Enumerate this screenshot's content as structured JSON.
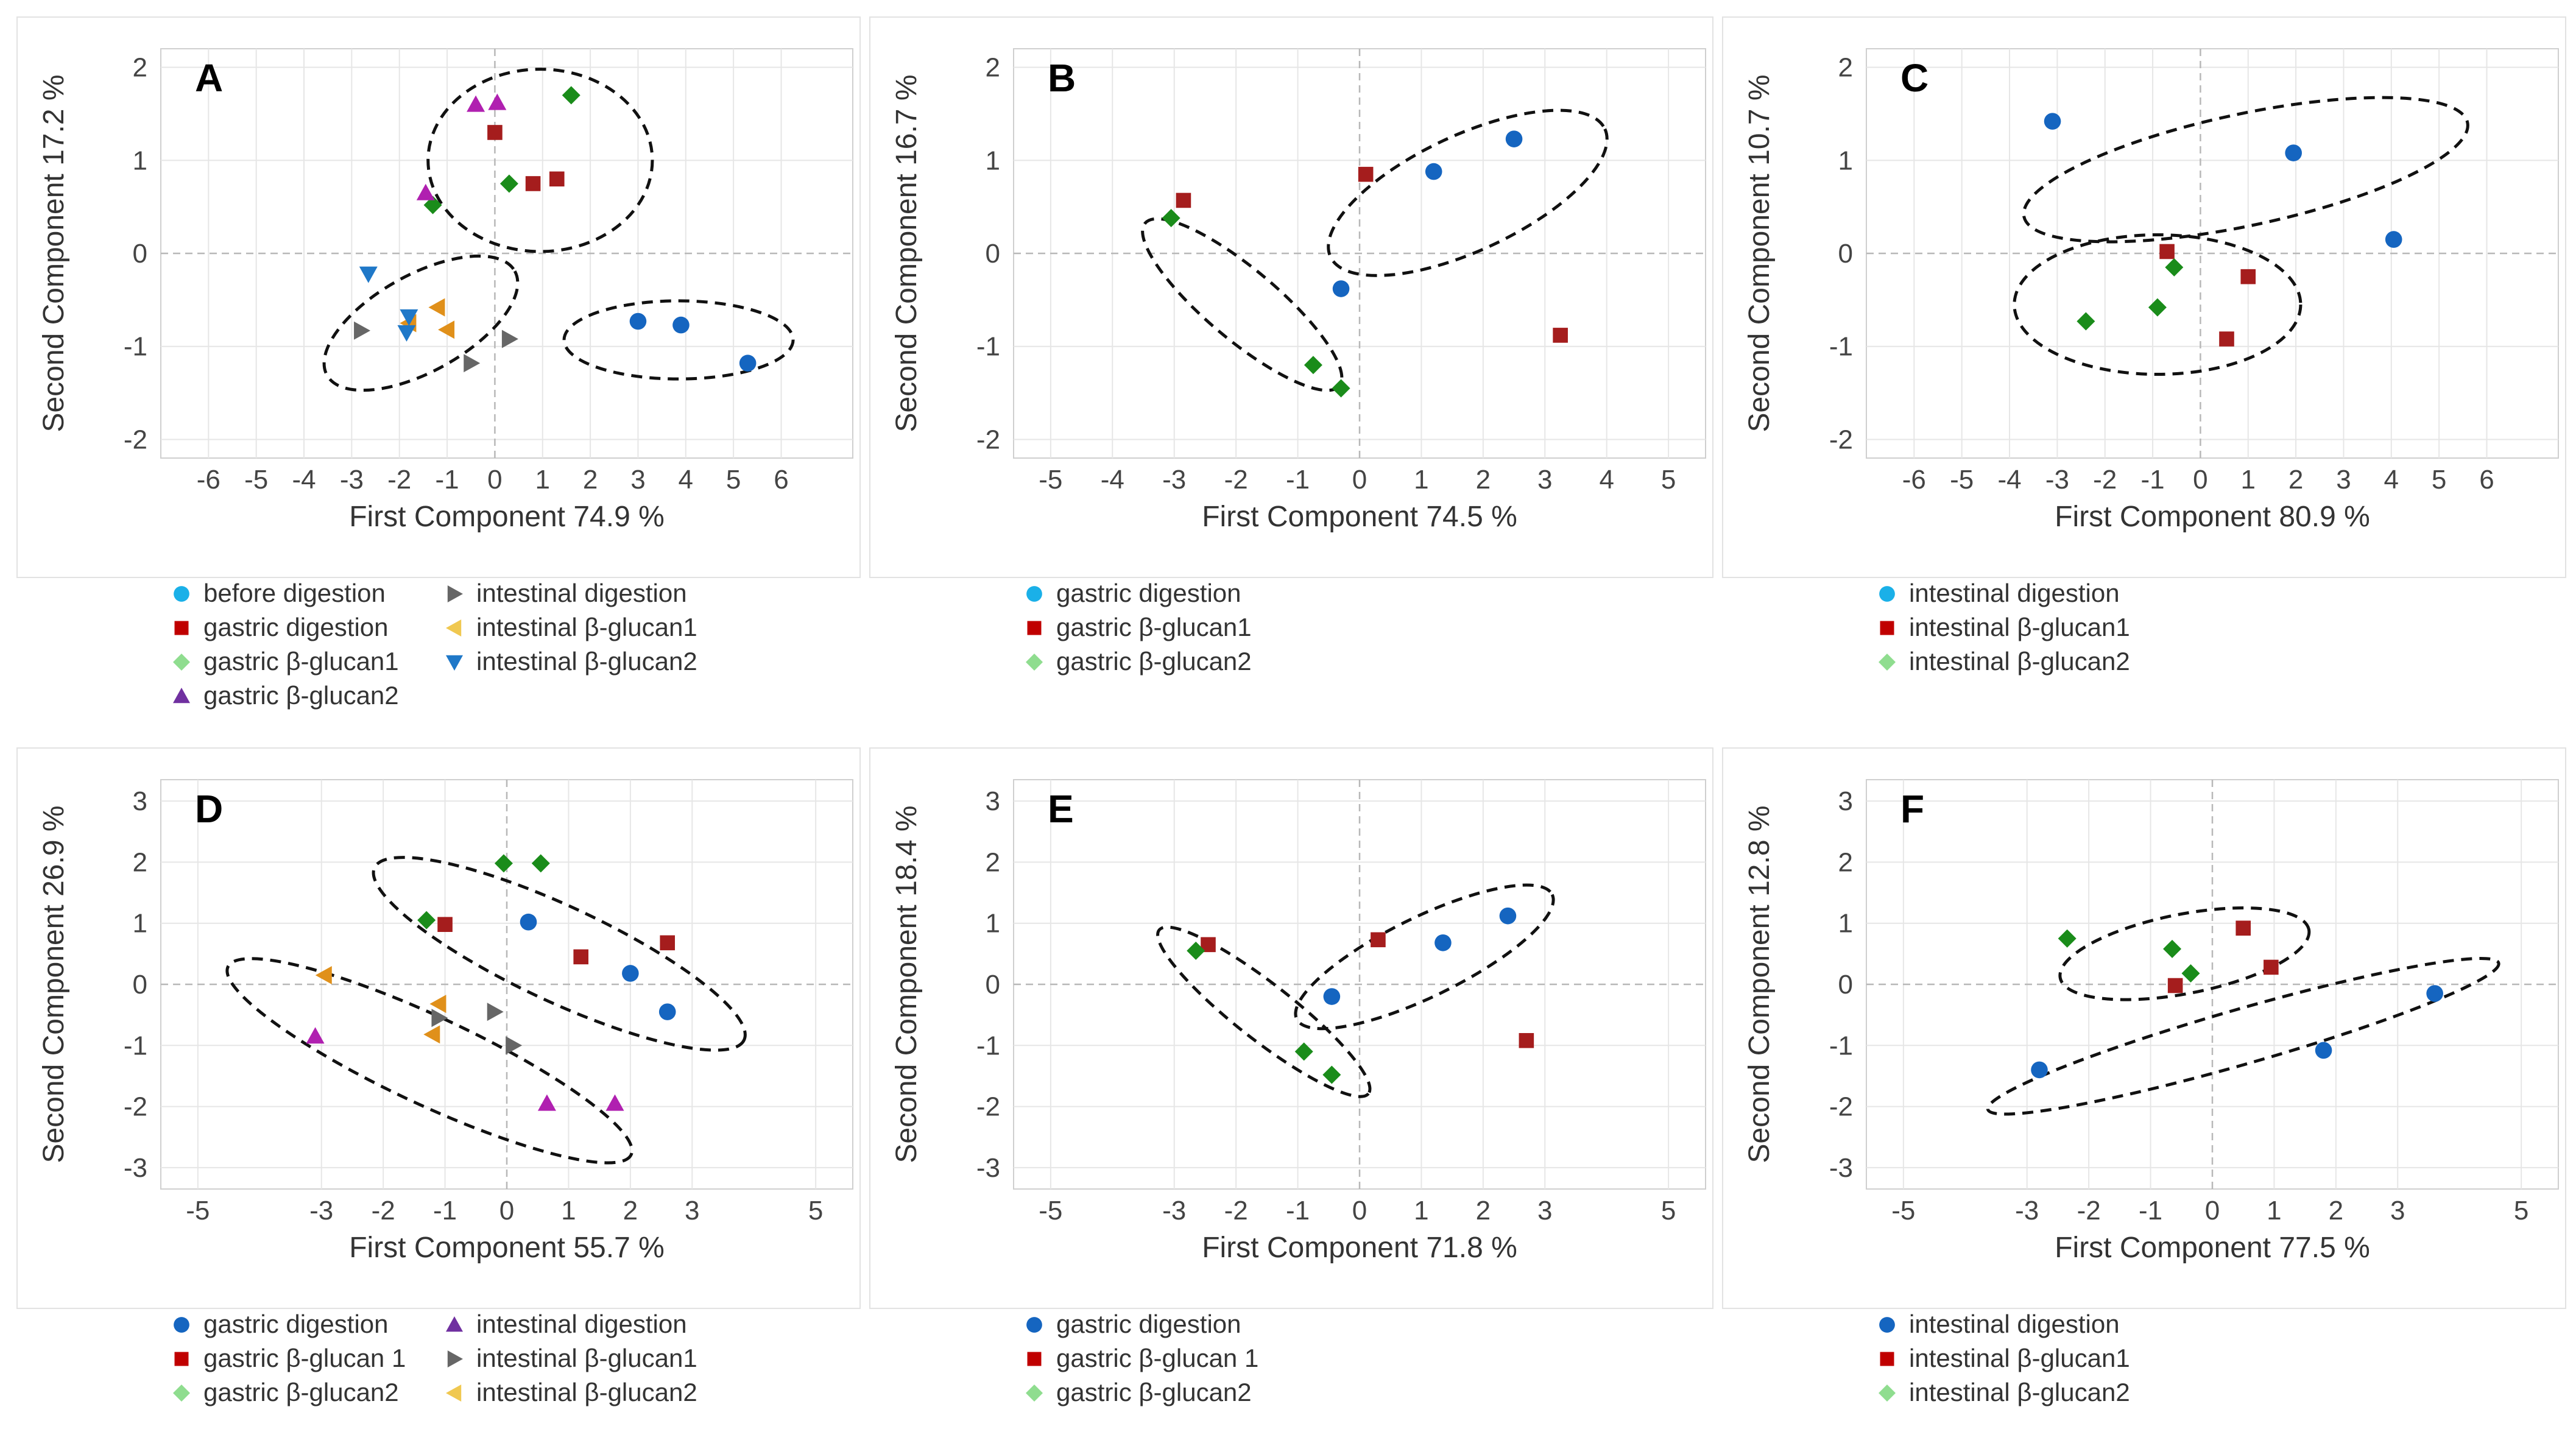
{
  "colors": {
    "blue": "#1565c0",
    "light_blue": "#1ab0e8",
    "red": "#c00000",
    "dark_red": "#a51d1d",
    "green": "#1a8c1a",
    "light_green": "#8fdd8f",
    "purple": "#b020b0",
    "purple_legend": "#7030a0",
    "gray": "#666666",
    "orange": "#e0901a",
    "yellow": "#f0c850",
    "steel_blue": "#1f78c8"
  },
  "chart_data": [
    {
      "panel": "A",
      "type": "scatter",
      "xlabel": "First Component 74.9 %",
      "ylabel": "Second Component 17.2 %",
      "xlim": [
        -7,
        7.5
      ],
      "ylim": [
        -2.2,
        2.2
      ],
      "xticks": [
        -6,
        -5,
        -4,
        -3,
        -2,
        -1,
        0,
        1,
        2,
        3,
        4,
        5,
        6
      ],
      "yticks": [
        2,
        1,
        0,
        -1,
        -2
      ],
      "legend": [
        {
          "label": "before digestion",
          "marker": "circle",
          "color": "light_blue"
        },
        {
          "label": "gastric digestion",
          "marker": "square",
          "color": "red"
        },
        {
          "label": "gastric β-glucan1",
          "marker": "diamond",
          "color": "light_green"
        },
        {
          "label": "gastric β-glucan2",
          "marker": "triangle-up",
          "color": "purple_legend"
        },
        {
          "label": "intestinal digestion",
          "marker": "triangle-right",
          "color": "gray"
        },
        {
          "label": "intestinal β-glucan1",
          "marker": "triangle-left",
          "color": "yellow"
        },
        {
          "label": "intestinal β-glucan2",
          "marker": "triangle-down",
          "color": "steel_blue"
        }
      ],
      "series": [
        {
          "name": "before digestion",
          "marker": "circle",
          "color": "blue",
          "points": [
            [
              3.0,
              -0.73
            ],
            [
              3.9,
              -0.77
            ],
            [
              5.3,
              -1.18
            ]
          ]
        },
        {
          "name": "gastric digestion",
          "marker": "square",
          "color": "dark_red",
          "points": [
            [
              0.0,
              1.3
            ],
            [
              0.8,
              0.75
            ],
            [
              1.3,
              0.8
            ]
          ]
        },
        {
          "name": "gastric β-glucan1",
          "marker": "diamond",
          "color": "green",
          "points": [
            [
              1.6,
              1.7
            ],
            [
              0.3,
              0.75
            ],
            [
              -1.3,
              0.52
            ]
          ]
        },
        {
          "name": "gastric β-glucan2",
          "marker": "triangle-up",
          "color": "purple",
          "points": [
            [
              -0.4,
              1.6
            ],
            [
              0.05,
              1.62
            ],
            [
              -1.45,
              0.65
            ]
          ]
        },
        {
          "name": "intestinal digestion",
          "marker": "triangle-right",
          "color": "gray",
          "points": [
            [
              -2.8,
              -0.83
            ],
            [
              -0.5,
              -1.18
            ],
            [
              0.3,
              -0.92
            ]
          ]
        },
        {
          "name": "intestinal β-glucan1",
          "marker": "triangle-left",
          "color": "orange",
          "points": [
            [
              -1.2,
              -0.58
            ],
            [
              -1.0,
              -0.82
            ],
            [
              -1.8,
              -0.75
            ]
          ]
        },
        {
          "name": "intestinal β-glucan2",
          "marker": "triangle-down",
          "color": "steel_blue",
          "points": [
            [
              -2.65,
              -0.22
            ],
            [
              -1.85,
              -0.85
            ],
            [
              -1.8,
              -0.68
            ]
          ]
        }
      ],
      "ellipses": [
        {
          "cx": 0.95,
          "cy": 1.0,
          "rx": 2.35,
          "ry": 0.98,
          "angle": 0
        },
        {
          "cx": -1.55,
          "cy": -0.75,
          "rx": 2.25,
          "ry": 0.52,
          "angle": -29
        },
        {
          "cx": 3.85,
          "cy": -0.93,
          "rx": 2.4,
          "ry": 0.42,
          "angle": 0
        }
      ]
    },
    {
      "panel": "B",
      "type": "scatter",
      "xlabel": "First Component 74.5 %",
      "ylabel": "Second Component 16.7 %",
      "xlim": [
        -5.6,
        5.6
      ],
      "ylim": [
        -2.2,
        2.2
      ],
      "xticks": [
        -5,
        -4,
        -3,
        -2,
        -1,
        0,
        1,
        2,
        3,
        4,
        5
      ],
      "yticks": [
        2,
        1,
        0,
        -1,
        -2
      ],
      "legend": [
        {
          "label": "gastric digestion",
          "marker": "circle",
          "color": "light_blue"
        },
        {
          "label": "gastric β-glucan1",
          "marker": "square",
          "color": "red"
        },
        {
          "label": "gastric β-glucan2",
          "marker": "diamond",
          "color": "light_green"
        }
      ],
      "series": [
        {
          "name": "gastric digestion",
          "marker": "circle",
          "color": "blue",
          "points": [
            [
              2.5,
              1.23
            ],
            [
              1.2,
              0.88
            ],
            [
              -0.3,
              -0.38
            ]
          ]
        },
        {
          "name": "gastric β-glucan1",
          "marker": "square",
          "color": "dark_red",
          "points": [
            [
              -2.85,
              0.57
            ],
            [
              0.1,
              0.85
            ],
            [
              3.25,
              -0.88
            ]
          ]
        },
        {
          "name": "gastric β-glucan2",
          "marker": "diamond",
          "color": "green",
          "points": [
            [
              -3.05,
              0.38
            ],
            [
              -0.75,
              -1.2
            ],
            [
              -0.3,
              -1.45
            ]
          ]
        }
      ],
      "ellipses": [
        {
          "cx": 1.75,
          "cy": 0.65,
          "rx": 2.45,
          "ry": 0.62,
          "angle": -25
        },
        {
          "cx": -1.9,
          "cy": -0.55,
          "rx": 2.05,
          "ry": 0.38,
          "angle": 40
        }
      ]
    },
    {
      "panel": "C",
      "type": "scatter",
      "xlabel": "First Component 80.9 %",
      "ylabel": "Second Component 10.7 %",
      "xlim": [
        -7,
        7.5
      ],
      "ylim": [
        -2.2,
        2.2
      ],
      "xticks": [
        -6,
        -5,
        -4,
        -3,
        -2,
        -1,
        0,
        1,
        2,
        3,
        4,
        5,
        6
      ],
      "yticks": [
        2,
        1,
        0,
        -1,
        -2
      ],
      "legend": [
        {
          "label": "intestinal digestion",
          "marker": "circle",
          "color": "light_blue"
        },
        {
          "label": "intestinal β-glucan1",
          "marker": "square",
          "color": "red"
        },
        {
          "label": "intestinal β-glucan2",
          "marker": "diamond",
          "color": "light_green"
        }
      ],
      "series": [
        {
          "name": "intestinal digestion",
          "marker": "circle",
          "color": "blue",
          "points": [
            [
              -3.1,
              1.42
            ],
            [
              1.95,
              1.08
            ],
            [
              4.05,
              0.15
            ]
          ]
        },
        {
          "name": "intestinal β-glucan1",
          "marker": "square",
          "color": "dark_red",
          "points": [
            [
              -0.7,
              0.02
            ],
            [
              1.0,
              -0.25
            ],
            [
              0.55,
              -0.92
            ]
          ]
        },
        {
          "name": "intestinal β-glucan2",
          "marker": "diamond",
          "color": "green",
          "points": [
            [
              -2.4,
              -0.73
            ],
            [
              -0.55,
              -0.15
            ],
            [
              -0.9,
              -0.58
            ]
          ]
        }
      ],
      "ellipses": [
        {
          "cx": 0.95,
          "cy": 0.9,
          "rx": 4.75,
          "ry": 0.6,
          "angle": -12
        },
        {
          "cx": -0.9,
          "cy": -0.55,
          "rx": 3.0,
          "ry": 0.75,
          "angle": 0
        }
      ]
    },
    {
      "panel": "D",
      "type": "scatter",
      "xlabel": "First Component 55.7 %",
      "ylabel": "Second Component 26.9 %",
      "xlim": [
        -5.6,
        5.6
      ],
      "ylim": [
        -3.35,
        3.35
      ],
      "xticks": [
        -5,
        -3,
        -2,
        -1,
        0,
        1,
        2,
        3,
        5
      ],
      "yticks": [
        3,
        2,
        1,
        0,
        -1,
        -2,
        -3
      ],
      "legend": [
        {
          "label": "gastric digestion",
          "marker": "circle",
          "color": "blue"
        },
        {
          "label": "gastric β-glucan 1",
          "marker": "square",
          "color": "red"
        },
        {
          "label": "gastric β-glucan2",
          "marker": "diamond",
          "color": "light_green"
        },
        {
          "label": "intestinal digestion",
          "marker": "triangle-up",
          "color": "purple_legend"
        },
        {
          "label": "intestinal β-glucan1",
          "marker": "triangle-right",
          "color": "gray"
        },
        {
          "label": "intestinal β-glucan2",
          "marker": "triangle-left",
          "color": "yellow"
        }
      ],
      "series": [
        {
          "name": "gastric digestion",
          "marker": "circle",
          "color": "blue",
          "points": [
            [
              0.35,
              1.02
            ],
            [
              2.0,
              0.18
            ],
            [
              2.6,
              -0.45
            ]
          ]
        },
        {
          "name": "gastric β-glucan 1",
          "marker": "square",
          "color": "dark_red",
          "points": [
            [
              -1.0,
              0.98
            ],
            [
              1.2,
              0.45
            ],
            [
              2.6,
              0.68
            ]
          ]
        },
        {
          "name": "gastric β-glucan2",
          "marker": "diamond",
          "color": "green",
          "points": [
            [
              -0.05,
              1.98
            ],
            [
              0.55,
              1.98
            ],
            [
              -1.3,
              1.05
            ]
          ]
        },
        {
          "name": "intestinal digestion",
          "marker": "triangle-up",
          "color": "purple",
          "points": [
            [
              -3.1,
              -0.85
            ],
            [
              0.65,
              -1.95
            ],
            [
              1.75,
              -1.95
            ]
          ]
        },
        {
          "name": "intestinal β-glucan1",
          "marker": "triangle-right",
          "color": "gray",
          "points": [
            [
              -1.1,
              -0.55
            ],
            [
              -0.2,
              -0.45
            ],
            [
              0.1,
              -1.0
            ]
          ]
        },
        {
          "name": "intestinal β-glucan2",
          "marker": "triangle-left",
          "color": "orange",
          "points": [
            [
              -2.95,
              0.15
            ],
            [
              -1.1,
              -0.32
            ],
            [
              -1.2,
              -0.82
            ]
          ]
        }
      ],
      "ellipses": [
        {
          "cx": 0.85,
          "cy": 0.5,
          "rx": 3.3,
          "ry": 0.78,
          "angle": 25
        },
        {
          "cx": -1.25,
          "cy": -1.25,
          "rx": 3.6,
          "ry": 0.72,
          "angle": 25
        }
      ]
    },
    {
      "panel": "E",
      "type": "scatter",
      "xlabel": "First Component 71.8 %",
      "ylabel": "Second Component 18.4 %",
      "xlim": [
        -5.6,
        5.6
      ],
      "ylim": [
        -3.35,
        3.35
      ],
      "xticks": [
        -5,
        -3,
        -2,
        -1,
        0,
        1,
        2,
        3,
        5
      ],
      "yticks": [
        3,
        2,
        1,
        0,
        -1,
        -2,
        -3
      ],
      "legend": [
        {
          "label": "gastric digestion",
          "marker": "circle",
          "color": "blue"
        },
        {
          "label": "gastric β-glucan 1",
          "marker": "square",
          "color": "red"
        },
        {
          "label": "gastric β-glucan2",
          "marker": "diamond",
          "color": "light_green"
        }
      ],
      "series": [
        {
          "name": "gastric digestion",
          "marker": "circle",
          "color": "blue",
          "points": [
            [
              2.4,
              1.12
            ],
            [
              1.35,
              0.68
            ],
            [
              -0.45,
              -0.2
            ]
          ]
        },
        {
          "name": "gastric β-glucan 1",
          "marker": "square",
          "color": "dark_red",
          "points": [
            [
              -2.45,
              0.65
            ],
            [
              0.3,
              0.73
            ],
            [
              2.7,
              -0.92
            ]
          ]
        },
        {
          "name": "gastric β-glucan2",
          "marker": "diamond",
          "color": "green",
          "points": [
            [
              -2.65,
              0.55
            ],
            [
              -0.9,
              -1.1
            ],
            [
              -0.45,
              -1.48
            ]
          ]
        }
      ],
      "ellipses": [
        {
          "cx": 1.05,
          "cy": 0.45,
          "rx": 2.3,
          "ry": 0.65,
          "angle": -26
        },
        {
          "cx": -1.55,
          "cy": -0.45,
          "rx": 2.15,
          "ry": 0.46,
          "angle": 38
        }
      ]
    },
    {
      "panel": "F",
      "type": "scatter",
      "xlabel": "First Component 77.5 %",
      "ylabel": "Second Component 12.8 %",
      "xlim": [
        -5.6,
        5.6
      ],
      "ylim": [
        -3.35,
        3.35
      ],
      "xticks": [
        -5,
        -3,
        -2,
        -1,
        0,
        1,
        2,
        3,
        5
      ],
      "yticks": [
        3,
        2,
        1,
        0,
        -1,
        -2,
        -3
      ],
      "legend": [
        {
          "label": "intestinal digestion",
          "marker": "circle",
          "color": "blue"
        },
        {
          "label": "intestinal β-glucan1",
          "marker": "square",
          "color": "red"
        },
        {
          "label": "intestinal β-glucan2",
          "marker": "diamond",
          "color": "light_green"
        }
      ],
      "series": [
        {
          "name": "intestinal digestion",
          "marker": "circle",
          "color": "blue",
          "points": [
            [
              -2.8,
              -1.4
            ],
            [
              1.8,
              -1.08
            ],
            [
              3.6,
              -0.15
            ]
          ]
        },
        {
          "name": "intestinal β-glucan1",
          "marker": "square",
          "color": "dark_red",
          "points": [
            [
              0.5,
              0.92
            ],
            [
              -0.6,
              -0.02
            ],
            [
              0.95,
              0.28
            ]
          ]
        },
        {
          "name": "intestinal β-glucan2",
          "marker": "diamond",
          "color": "green",
          "points": [
            [
              -2.35,
              0.75
            ],
            [
              -0.65,
              0.58
            ],
            [
              -0.35,
              0.18
            ]
          ]
        }
      ],
      "ellipses": [
        {
          "cx": -0.45,
          "cy": 0.5,
          "rx": 2.05,
          "ry": 0.65,
          "angle": -11
        },
        {
          "cx": 0.5,
          "cy": -0.85,
          "rx": 4.3,
          "ry": 0.45,
          "angle": -16
        }
      ]
    }
  ]
}
